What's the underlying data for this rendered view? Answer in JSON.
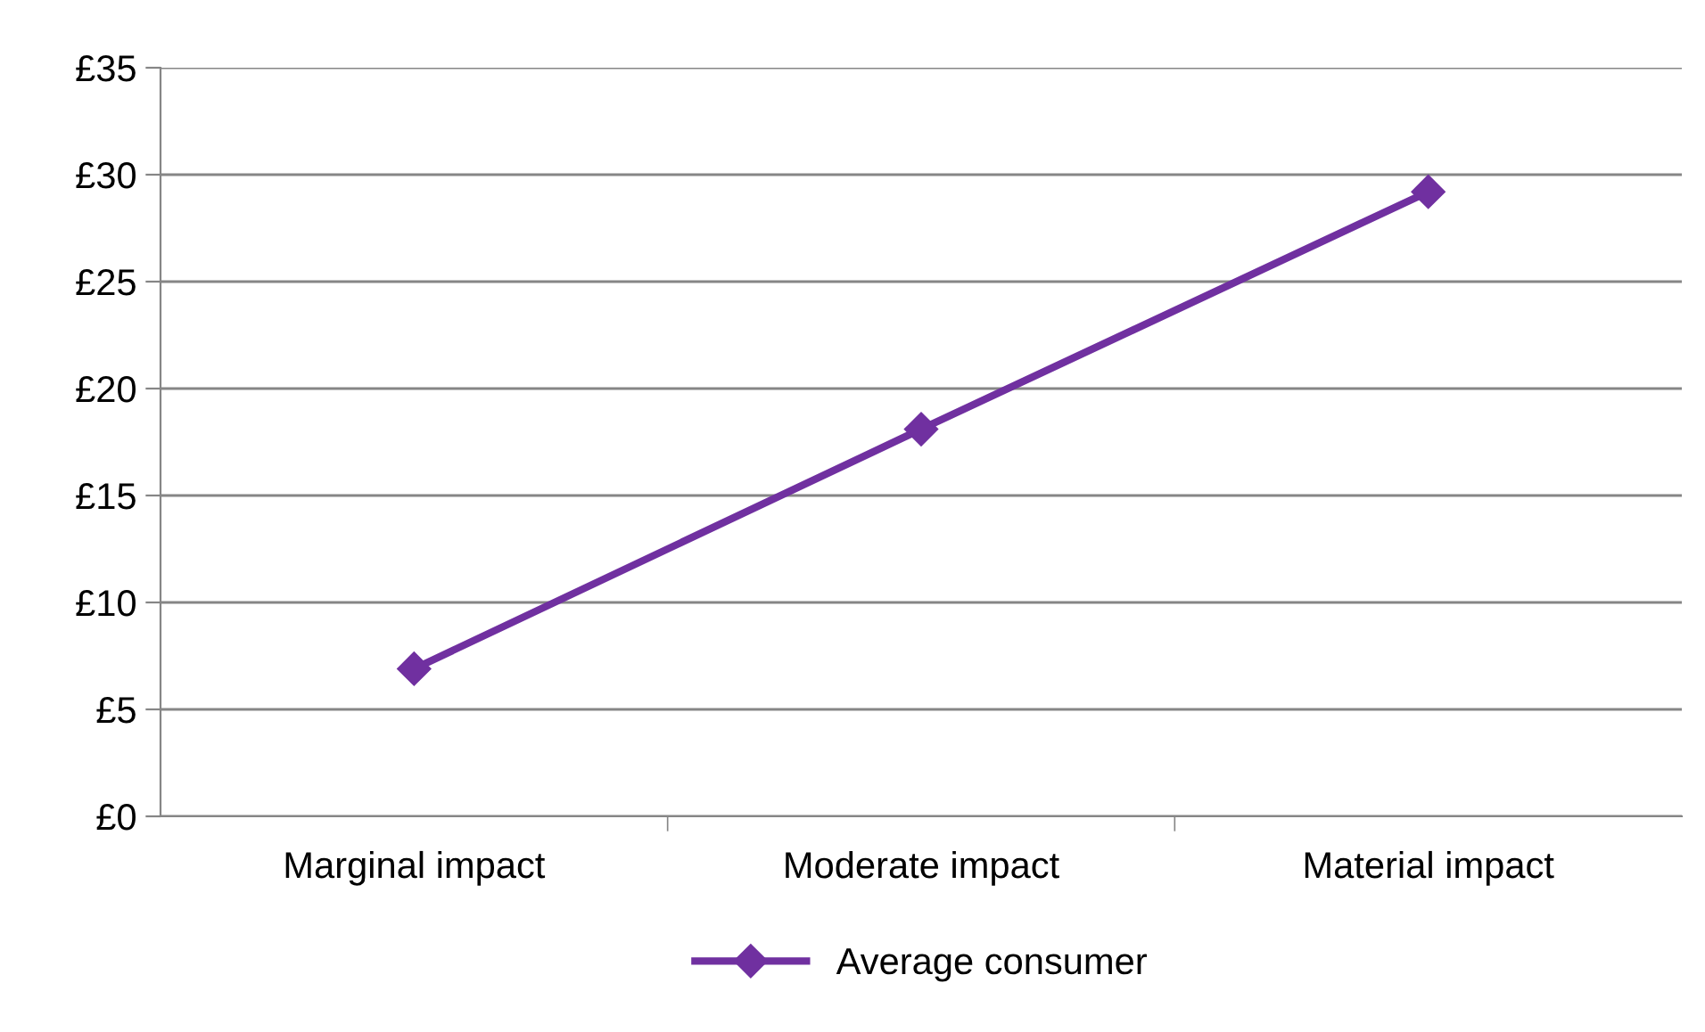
{
  "chart_data": {
    "type": "line",
    "categories": [
      "Marginal impact",
      "Moderate impact",
      "Material impact"
    ],
    "series": [
      {
        "name": "Average consumer",
        "color": "#7030a0",
        "values": [
          6.9,
          18.1,
          29.2
        ]
      }
    ],
    "ylim": [
      0,
      35
    ],
    "yticks": [
      {
        "value": 0,
        "label": "£0"
      },
      {
        "value": 5,
        "label": "£5"
      },
      {
        "value": 10,
        "label": "£10"
      },
      {
        "value": 15,
        "label": "£15"
      },
      {
        "value": 20,
        "label": "£20"
      },
      {
        "value": 25,
        "label": "£25"
      },
      {
        "value": 30,
        "label": "£30"
      },
      {
        "value": 35,
        "label": "£35"
      }
    ],
    "grid": "y",
    "legend": "bottom",
    "marker": "diamond",
    "line_style": "solid"
  }
}
